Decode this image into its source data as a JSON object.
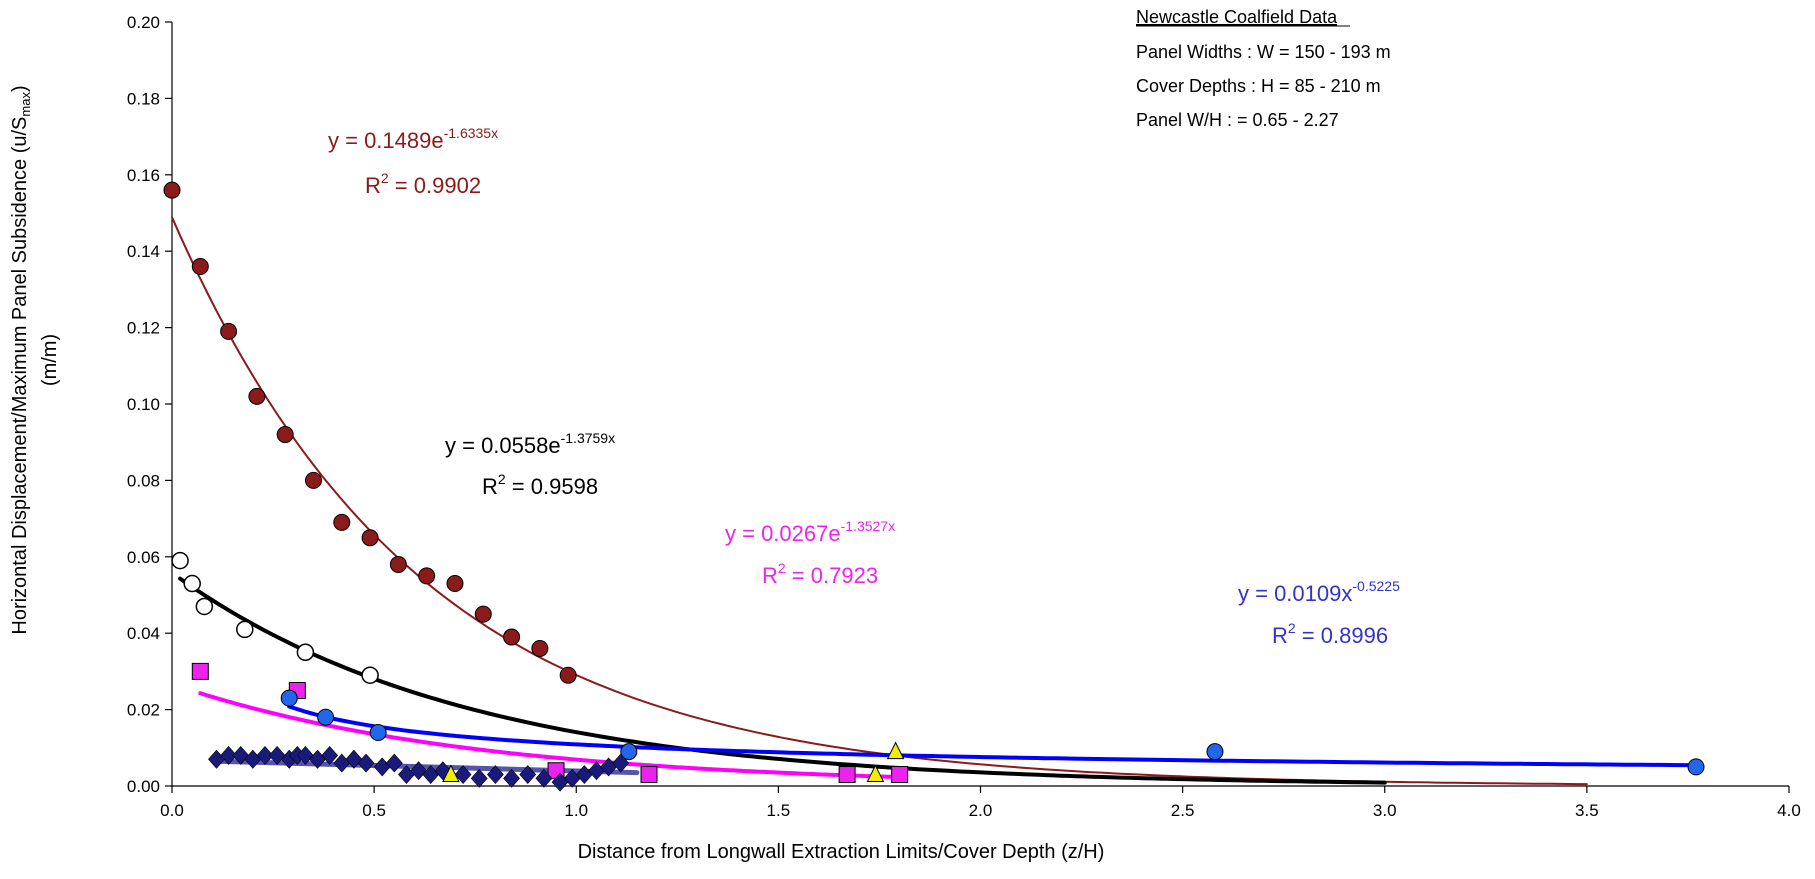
{
  "chart_data": {
    "type": "scatter",
    "xlabel": "Distance from Longwall Extraction Limits/Cover Depth (z/H)",
    "ylabel_main": "Horizontal Displacement/Maximum Panel Subsidence (u/S",
    "ylabel_sub": "max",
    "ylabel_close": ")",
    "ylabel_units": "(m/m)",
    "xlim": [
      0.0,
      4.0
    ],
    "ylim": [
      0.0,
      0.2
    ],
    "x_ticks": [
      "0.0",
      "0.5",
      "1.0",
      "1.5",
      "2.0",
      "2.5",
      "3.0",
      "3.5",
      "4.0"
    ],
    "y_ticks": [
      "0.00",
      "0.02",
      "0.04",
      "0.06",
      "0.08",
      "0.10",
      "0.12",
      "0.14",
      "0.16",
      "0.18",
      "0.20"
    ],
    "grid": false,
    "info_box": {
      "title": "Newcastle Coalfield Data",
      "lines": [
        "Panel Widths : W = 150 - 193 m",
        "Cover Depths : H = 85 - 210 m",
        "Panel W/H : = 0.65 - 2.27"
      ]
    },
    "series": [
      {
        "marker": "filled-circle",
        "color": "#8B1A1A",
        "points": [
          [
            0.0,
            0.156
          ],
          [
            0.07,
            0.136
          ],
          [
            0.14,
            0.119
          ],
          [
            0.21,
            0.102
          ],
          [
            0.28,
            0.092
          ],
          [
            0.35,
            0.08
          ],
          [
            0.42,
            0.069
          ],
          [
            0.49,
            0.065
          ],
          [
            0.56,
            0.058
          ],
          [
            0.63,
            0.055
          ],
          [
            0.7,
            0.053
          ],
          [
            0.77,
            0.045
          ],
          [
            0.84,
            0.039
          ],
          [
            0.91,
            0.036
          ],
          [
            0.98,
            0.029
          ]
        ],
        "fit": {
          "model": "exponential",
          "a": 0.1489,
          "b": -1.6335,
          "x_range": [
            0.0,
            3.5
          ],
          "color": "#8B1A1A"
        },
        "equation_prefix": "y = 0.1489e",
        "equation_exp": "-1.6335x",
        "r2_prefix": "R",
        "r2_sup": "2",
        "r2_suffix": " = 0.9902"
      },
      {
        "marker": "open-circle",
        "color": "#000000",
        "points": [
          [
            0.02,
            0.059
          ],
          [
            0.05,
            0.053
          ],
          [
            0.08,
            0.047
          ],
          [
            0.18,
            0.041
          ],
          [
            0.33,
            0.035
          ],
          [
            0.49,
            0.029
          ]
        ],
        "fit": {
          "model": "exponential",
          "a": 0.0558,
          "b": -1.3759,
          "x_range": [
            0.02,
            3.0
          ],
          "color": "#000000"
        },
        "equation_prefix": "y = 0.0558e",
        "equation_exp": "-1.3759x",
        "r2_prefix": "R",
        "r2_sup": "2",
        "r2_suffix": " = 0.9598"
      },
      {
        "marker": "square",
        "color": "#EE22EE",
        "points": [
          [
            0.07,
            0.03
          ],
          [
            0.31,
            0.025
          ],
          [
            0.95,
            0.004
          ],
          [
            1.18,
            0.003
          ],
          [
            1.67,
            0.003
          ],
          [
            1.8,
            0.003
          ]
        ],
        "fit": {
          "model": "exponential",
          "a": 0.0267,
          "b": -1.3527,
          "x_range": [
            0.07,
            1.8
          ],
          "color": "#FF00FF"
        },
        "equation_prefix": "y = 0.0267e",
        "equation_exp": "-1.3527x",
        "r2_prefix": "R",
        "r2_sup": "2",
        "r2_suffix": " = 0.7923"
      },
      {
        "marker": "filled-circle",
        "color": "#2266EE",
        "points": [
          [
            0.29,
            0.023
          ],
          [
            0.38,
            0.018
          ],
          [
            0.51,
            0.014
          ],
          [
            1.13,
            0.009
          ],
          [
            2.58,
            0.009
          ],
          [
            3.77,
            0.005
          ]
        ],
        "fit": {
          "model": "power",
          "a": 0.0109,
          "b": -0.5225,
          "x_range": [
            0.29,
            3.77
          ],
          "color": "#0000FF"
        },
        "equation_prefix": "y = 0.0109x",
        "equation_exp": "-0.5225",
        "r2_prefix": "R",
        "r2_sup": "2",
        "r2_suffix": " = 0.8996"
      },
      {
        "marker": "diamond",
        "color": "#1A1A7A",
        "points": [
          [
            0.11,
            0.007
          ],
          [
            0.14,
            0.008
          ],
          [
            0.17,
            0.008
          ],
          [
            0.2,
            0.007
          ],
          [
            0.23,
            0.008
          ],
          [
            0.26,
            0.008
          ],
          [
            0.29,
            0.007
          ],
          [
            0.31,
            0.008
          ],
          [
            0.33,
            0.008
          ],
          [
            0.36,
            0.007
          ],
          [
            0.39,
            0.008
          ],
          [
            0.42,
            0.006
          ],
          [
            0.45,
            0.007
          ],
          [
            0.48,
            0.006
          ],
          [
            0.52,
            0.005
          ],
          [
            0.55,
            0.006
          ],
          [
            0.58,
            0.003
          ],
          [
            0.61,
            0.004
          ],
          [
            0.64,
            0.003
          ],
          [
            0.67,
            0.004
          ],
          [
            0.72,
            0.003
          ],
          [
            0.76,
            0.002
          ],
          [
            0.8,
            0.003
          ],
          [
            0.84,
            0.002
          ],
          [
            0.88,
            0.003
          ],
          [
            0.92,
            0.002
          ],
          [
            0.96,
            0.001
          ],
          [
            0.99,
            0.002
          ],
          [
            1.02,
            0.003
          ],
          [
            1.05,
            0.004
          ],
          [
            1.08,
            0.005
          ],
          [
            1.11,
            0.006
          ]
        ],
        "fit": {
          "model": "linear",
          "line": [
            [
              0.11,
              0.0065
            ],
            [
              1.15,
              0.0035
            ]
          ],
          "color": "#5555AA"
        }
      },
      {
        "marker": "triangle",
        "color": "#EEEE00",
        "points": [
          [
            0.69,
            0.003
          ],
          [
            1.74,
            0.003
          ],
          [
            1.79,
            0.009
          ]
        ]
      }
    ]
  }
}
